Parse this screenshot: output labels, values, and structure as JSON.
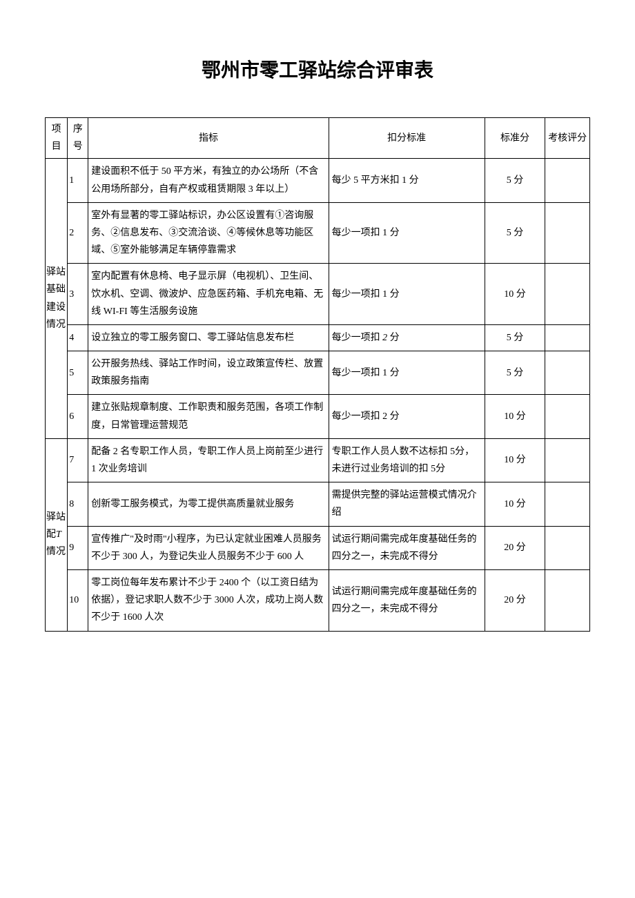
{
  "title": "鄂州市零工驿站综合评审表",
  "headers": {
    "category": "项目",
    "seq": "序号",
    "indicator": "指标",
    "deduct": "扣分标准",
    "score": "标准分",
    "eval": "考核评分"
  },
  "categories": [
    {
      "name": "驿站基础建设情况",
      "rows": [
        {
          "seq": "1",
          "indicator": "建设面积不低于 50 平方米，有独立的办公场所（不含公用场所部分，自有产权或租赁期限 3 年以上）",
          "deduct": "每少 5 平方米扣 1 分",
          "score": "5 分",
          "eval": ""
        },
        {
          "seq": "2",
          "indicator": "室外有显著的零工驿站标识，办公区设置有①咨询服务、②信息发布、③交流洽谈、④等候休息等功能区域、⑤室外能够满足车辆停靠需求",
          "deduct": "每少一项扣 1 分",
          "score": "5 分",
          "eval": ""
        },
        {
          "seq": "3",
          "indicator": "室内配置有休息椅、电子显示屏（电视机）、卫生间、饮水机、空调、微波炉、应急医药箱、手机充电箱、无线 WI-FI 等生活服务设施",
          "deduct": "每少一项扣 1 分",
          "score": "10 分",
          "eval": ""
        },
        {
          "seq": "4",
          "indicator_pre": "设立独立的零工服务窗口、零工驿站信息发布栏",
          "deduct_pre": "每少一项扣 ",
          "deduct_italic": "2",
          "deduct_post": " 分",
          "score": "5 分",
          "eval": ""
        },
        {
          "seq": "5",
          "indicator": "公开服务热线、驿站工作时间，设立政策宣传栏、放置政策服务指南",
          "deduct": "每少一项扣 1 分",
          "score": "5 分",
          "eval": ""
        },
        {
          "seq": "6",
          "indicator": "建立张贴规章制度、工作职责和服务范围，各项工作制度，日常管理运营规范",
          "deduct": "每少一项扣 2 分",
          "score": "10 分",
          "eval": ""
        }
      ]
    },
    {
      "name_pre": "驿站配",
      "name_italic": "T",
      "name_post": " 情况",
      "rows": [
        {
          "seq": "7",
          "indicator": "配备 2 名专职工作人员，专职工作人员上岗前至少进行 1 次业务培训",
          "deduct": "专职工作人员人数不达标扣 5分，未进行过业务培训的扣 5分",
          "score": "10 分",
          "eval": ""
        },
        {
          "seq": "8",
          "indicator": "创新零工服务模式，为零工提供高质量就业服务",
          "deduct": "需提供完整的驿站运营模式情况介绍",
          "score": "10 分",
          "eval": ""
        },
        {
          "seq": "9",
          "indicator": "宣传推广\"及时雨\"小程序，为已认定就业困难人员服务不少于 300 人，为登记失业人员服务不少于 600 人",
          "deduct": "试运行期间需完成年度基础任务的四分之一，未完成不得分",
          "score": "20 分",
          "eval": ""
        },
        {
          "seq": "10",
          "indicator": "零工岗位每年发布累计不少于 2400 个（以工资日结为依据），登记求职人数不少于 3000 人次，成功上岗人数不少于 1600 人次",
          "deduct": "试运行期间需完成年度基础任务的四分之一，未完成不得分",
          "score": "20 分",
          "eval": ""
        }
      ]
    }
  ]
}
